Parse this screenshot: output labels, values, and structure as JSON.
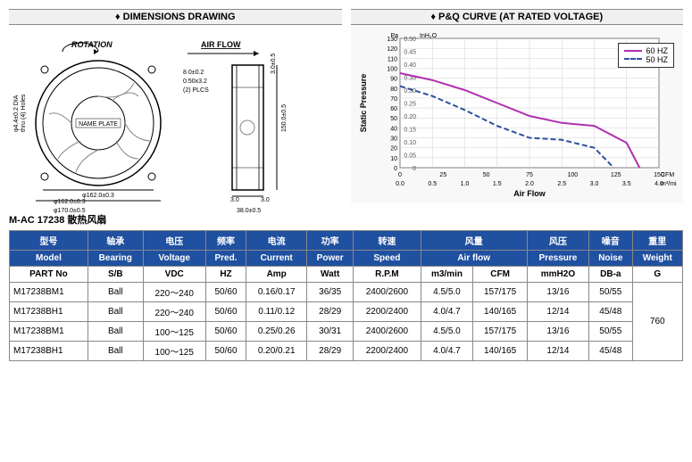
{
  "panels": {
    "dimensions_title": "♦ DIMENSIONS DRAWING",
    "pq_title": "♦ P&Q CURVE (AT RATED VOLTAGE)"
  },
  "drawing": {
    "rotation_label": "ROTATION",
    "airflow_label": "AIR FLOW",
    "nameplate": "NAME PLATE",
    "left_dim": "φ4.4±0.2 DIA\nthru (4) Holes",
    "bottom_dims": [
      "φ162.0±0.3",
      "φ170.0±0.5"
    ],
    "center_dims": [
      "8.0±0.2",
      "0.50x3.2",
      "(2) PLCS"
    ],
    "right_dims": [
      "3.0±0.5",
      "150.0±0.5"
    ],
    "bottom_pair": [
      "3.0",
      "3.0"
    ],
    "bottom_right": "38.0±0.5"
  },
  "chart": {
    "y1_label": "Static Pressure",
    "y1_unit": "Pa",
    "y2_unit": "InH₂O",
    "x_label": "Air Flow",
    "x_unit_cfm": "CFM",
    "x_unit_m3": "m³/min",
    "y1_max": 130,
    "y1_ticks": [
      0,
      10,
      20,
      30,
      40,
      50,
      60,
      70,
      80,
      90,
      100,
      110,
      120,
      130
    ],
    "y2_ticks": [
      "0",
      "0.05",
      "0.10",
      "0.15",
      "0.20",
      "0.25",
      "0.30",
      "0.35",
      "0.40",
      "0.45",
      "0.50"
    ],
    "x_cfm_ticks": [
      0,
      25,
      50,
      75,
      100,
      125,
      150
    ],
    "x_m3_ticks": [
      "0.0",
      "0.5",
      "1.0",
      "1.5",
      "2.0",
      "2.5",
      "3.0",
      "3.5",
      "4.0"
    ],
    "series": [
      {
        "name": "60 HZ",
        "color": "#b030b0",
        "dash": "none",
        "points": [
          [
            0,
            95
          ],
          [
            0.5,
            88
          ],
          [
            1.0,
            78
          ],
          [
            1.5,
            65
          ],
          [
            2.0,
            52
          ],
          [
            2.5,
            45
          ],
          [
            3.0,
            42
          ],
          [
            3.5,
            25
          ],
          [
            3.7,
            0
          ]
        ]
      },
      {
        "name": "50 HZ",
        "color": "#3050a0",
        "dash": "6,3",
        "points": [
          [
            0,
            82
          ],
          [
            0.5,
            72
          ],
          [
            1.0,
            58
          ],
          [
            1.5,
            42
          ],
          [
            2.0,
            30
          ],
          [
            2.5,
            28
          ],
          [
            3.0,
            20
          ],
          [
            3.3,
            0
          ]
        ]
      }
    ],
    "grid_color": "#d0d0d0",
    "bg_color": "#f8f8f8",
    "axis_color": "#333"
  },
  "table_title": "M-AC 17238 散热风扇",
  "table": {
    "header_cn": [
      "型号",
      "轴承",
      "电压",
      "频率",
      "电流",
      "功率",
      "转速",
      "风量",
      "",
      "风压",
      "噪音",
      "重里"
    ],
    "header_en": [
      "Model",
      "Bearing",
      "Voltage",
      "Pred.",
      "Current",
      "Power",
      "Speed",
      "Air flow",
      "",
      "Pressure",
      "Noise",
      "Weight"
    ],
    "units": [
      "PART No",
      "S/B",
      "VDC",
      "HZ",
      "Amp",
      "Watt",
      "R.P.M",
      "m3/min",
      "CFM",
      "mmH2O",
      "DB-a",
      "G"
    ],
    "rows": [
      [
        "M17238BM1",
        "Ball",
        "220～240",
        "50/60",
        "0.16/0.17",
        "36/35",
        "2400/2600",
        "4.5/5.0",
        "157/175",
        "13/16",
        "50/55"
      ],
      [
        "M17238BH1",
        "Ball",
        "220～240",
        "50/60",
        "0.11/0.12",
        "28/29",
        "2200/2400",
        "4.0/4.7",
        "140/165",
        "12/14",
        "45/48"
      ],
      [
        "M17238BM1",
        "Ball",
        "100～125",
        "50/60",
        "0.25/0.26",
        "30/31",
        "2400/2600",
        "4.5/5.0",
        "157/175",
        "13/16",
        "50/55"
      ],
      [
        "M17238BH1",
        "Ball",
        "100～125",
        "50/60",
        "0.20/0.21",
        "28/29",
        "2200/2400",
        "4.0/4.7",
        "140/165",
        "12/14",
        "45/48"
      ]
    ],
    "weight": "760",
    "header_bg": "#2050a0",
    "header_fg": "#ffffff"
  }
}
